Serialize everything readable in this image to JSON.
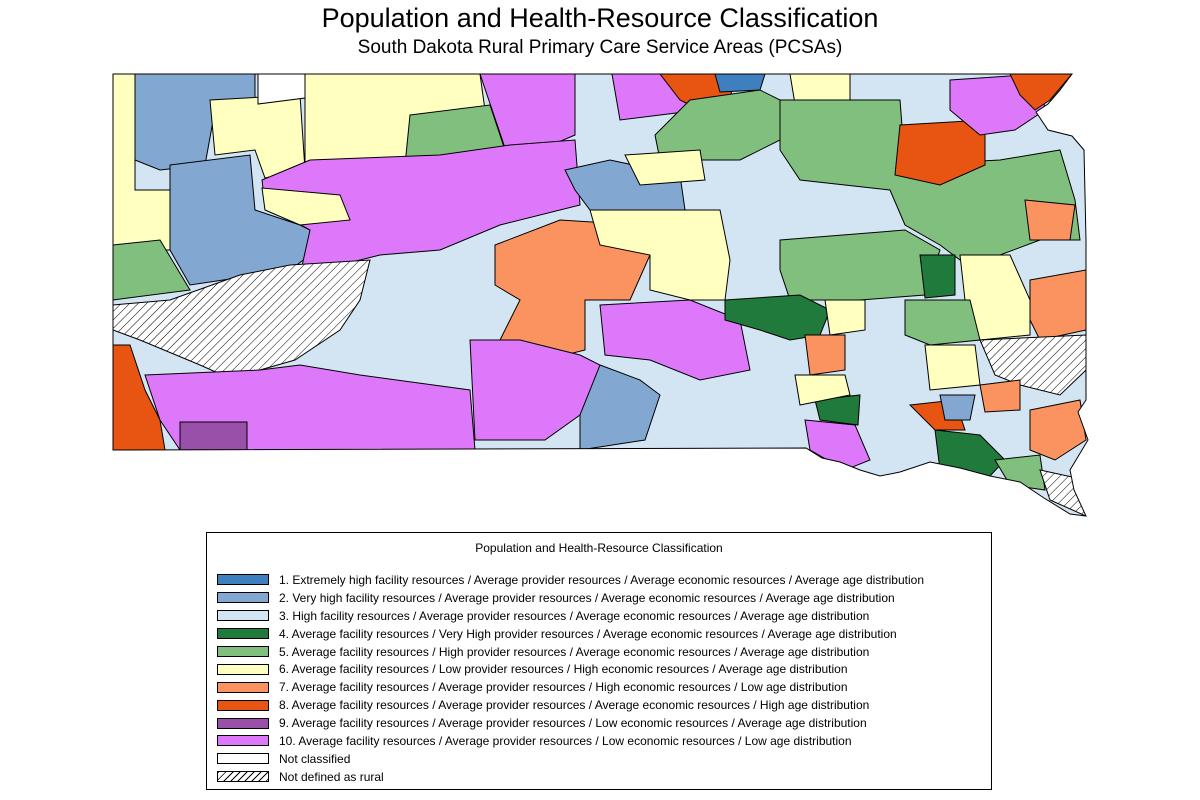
{
  "title": "Population and Health-Resource Classification",
  "subtitle": "South Dakota Rural Primary Care Service Areas (PCSAs)",
  "colors": {
    "c1": "#3d7fbf",
    "c2": "#82a8d1",
    "c3": "#d3e5f2",
    "c4": "#1f7a3c",
    "c5": "#80bf7d",
    "c6": "#ffffc0",
    "c7": "#fa9360",
    "c8": "#e85512",
    "c9": "#9950a8",
    "c10": "#de78fa",
    "nc": "#ffffff"
  },
  "legend": {
    "title": "Population and Health-Resource Classification",
    "items": [
      {
        "key": "c1",
        "label": "1. Extremely high facility resources / Average provider resources / Average economic resources / Average age distribution"
      },
      {
        "key": "c2",
        "label": "2. Very high facility resources / Average provider resources / Average economic resources / Average age distribution"
      },
      {
        "key": "c3",
        "label": "3. High facility resources / Average provider resources / Average economic resources / Average age distribution"
      },
      {
        "key": "c4",
        "label": "4. Average facility resources / Very High provider resources / Average economic resources / Average age distribution"
      },
      {
        "key": "c5",
        "label": "5. Average facility resources / High provider resources / Average economic resources / Average age distribution"
      },
      {
        "key": "c6",
        "label": "6. Average facility resources / Low provider resources / High economic resources / Average age distribution"
      },
      {
        "key": "c7",
        "label": "7. Average facility resources / Average provider resources / High economic resources / Low age distribution"
      },
      {
        "key": "c8",
        "label": "8. Average facility resources / Average provider resources / Average economic resources / High age distribution"
      },
      {
        "key": "c9",
        "label": "9. Average facility resources / Average provider resources / Low economic resources / Average age distribution"
      },
      {
        "key": "c10",
        "label": "10. Average facility resources / Average provider resources / Low economic resources / Low age distribution"
      },
      {
        "key": "nc",
        "label": "Not classified"
      },
      {
        "key": "hatch",
        "label": "Not defined as rural"
      }
    ]
  }
}
